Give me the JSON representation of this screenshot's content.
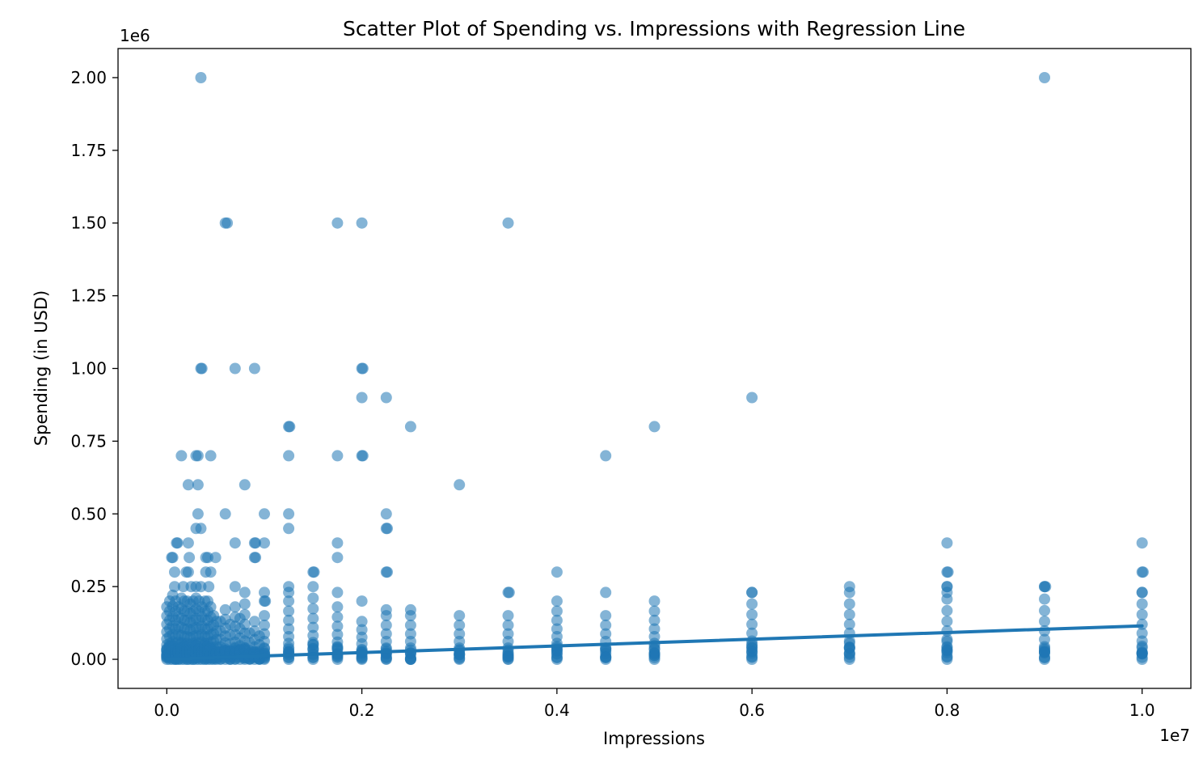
{
  "chart_data": {
    "type": "scatter",
    "title": "Scatter Plot of Spending vs. Impressions with Regression Line",
    "xlabel": "Impressions",
    "ylabel": "Spending (in USD)",
    "x_offset_label": "1e7",
    "y_offset_label": "1e6",
    "xlim": [
      -500000,
      10500000
    ],
    "ylim": [
      -100000,
      2100000
    ],
    "x_scale": 10000000,
    "y_scale": 1000000,
    "xticks": [
      0,
      2000000,
      4000000,
      6000000,
      8000000,
      10000000
    ],
    "xtick_labels": [
      "0.0",
      "0.2",
      "0.4",
      "0.6",
      "0.8",
      "1.0"
    ],
    "yticks": [
      0,
      250000,
      500000,
      750000,
      1000000,
      1250000,
      1500000,
      1750000,
      2000000
    ],
    "ytick_labels": [
      "0.00",
      "0.25",
      "0.50",
      "0.75",
      "1.00",
      "1.25",
      "1.50",
      "1.75",
      "2.00"
    ],
    "grid": false,
    "point_color": "#1f77b4",
    "point_alpha": 0.55,
    "line_color": "#1f77b4",
    "regression_line": {
      "x": [
        0,
        10000000
      ],
      "y": [
        0,
        115000
      ]
    },
    "outliers": [
      [
        350000,
        2000000
      ],
      [
        9000000,
        2000000
      ],
      [
        600000,
        1500000
      ],
      [
        620000,
        1500000
      ],
      [
        1750000,
        1500000
      ],
      [
        2000000,
        1500000
      ],
      [
        3500000,
        1500000
      ],
      [
        350000,
        1000000
      ],
      [
        360000,
        1000000
      ],
      [
        700000,
        1000000
      ],
      [
        900000,
        1000000
      ],
      [
        2000000,
        1000000
      ],
      [
        2010000,
        1000000
      ],
      [
        2000000,
        900000
      ],
      [
        2250000,
        900000
      ],
      [
        6000000,
        900000
      ],
      [
        1250000,
        800000
      ],
      [
        1260000,
        800000
      ],
      [
        2500000,
        800000
      ],
      [
        5000000,
        800000
      ],
      [
        150000,
        700000
      ],
      [
        300000,
        700000
      ],
      [
        320000,
        700000
      ],
      [
        450000,
        700000
      ],
      [
        1250000,
        700000
      ],
      [
        1750000,
        700000
      ],
      [
        2000000,
        700000
      ],
      [
        2010000,
        700000
      ],
      [
        4500000,
        700000
      ],
      [
        220000,
        600000
      ],
      [
        320000,
        600000
      ],
      [
        800000,
        600000
      ],
      [
        3000000,
        600000
      ],
      [
        320000,
        500000
      ],
      [
        600000,
        500000
      ],
      [
        1000000,
        500000
      ],
      [
        1250000,
        500000
      ],
      [
        2250000,
        500000
      ],
      [
        300000,
        450000
      ],
      [
        350000,
        450000
      ],
      [
        1250000,
        450000
      ],
      [
        2250000,
        450000
      ],
      [
        2260000,
        450000
      ],
      [
        100000,
        400000
      ],
      [
        110000,
        400000
      ],
      [
        220000,
        400000
      ],
      [
        700000,
        400000
      ],
      [
        900000,
        400000
      ],
      [
        910000,
        400000
      ],
      [
        1000000,
        400000
      ],
      [
        1750000,
        400000
      ],
      [
        8000000,
        400000
      ],
      [
        10000000,
        400000
      ],
      [
        50000,
        350000
      ],
      [
        60000,
        350000
      ],
      [
        230000,
        350000
      ],
      [
        400000,
        350000
      ],
      [
        420000,
        350000
      ],
      [
        500000,
        350000
      ],
      [
        900000,
        350000
      ],
      [
        910000,
        350000
      ],
      [
        1750000,
        350000
      ],
      [
        80000,
        300000
      ],
      [
        200000,
        300000
      ],
      [
        220000,
        300000
      ],
      [
        400000,
        300000
      ],
      [
        450000,
        300000
      ],
      [
        1500000,
        300000
      ],
      [
        1510000,
        300000
      ],
      [
        2250000,
        300000
      ],
      [
        2260000,
        300000
      ],
      [
        4000000,
        300000
      ],
      [
        8000000,
        300000
      ],
      [
        8010000,
        300000
      ],
      [
        10000000,
        300000
      ],
      [
        10010000,
        300000
      ],
      [
        80000,
        250000
      ],
      [
        170000,
        250000
      ],
      [
        250000,
        250000
      ],
      [
        300000,
        250000
      ],
      [
        350000,
        250000
      ],
      [
        430000,
        250000
      ],
      [
        700000,
        250000
      ],
      [
        1250000,
        250000
      ],
      [
        1500000,
        250000
      ],
      [
        7000000,
        250000
      ],
      [
        8000000,
        250000
      ],
      [
        9000000,
        250000
      ],
      [
        9010000,
        250000
      ],
      [
        1000000,
        230000
      ],
      [
        1250000,
        230000
      ],
      [
        1750000,
        230000
      ],
      [
        3500000,
        230000
      ],
      [
        3510000,
        230000
      ],
      [
        4500000,
        230000
      ],
      [
        6000000,
        230000
      ],
      [
        8000000,
        230000
      ],
      [
        10000000,
        230000
      ],
      [
        1000000,
        200000
      ],
      [
        1010000,
        200000
      ],
      [
        2000000,
        200000
      ],
      [
        2250000,
        170000
      ],
      [
        2500000,
        170000
      ]
    ],
    "clusters": [
      {
        "x": 0,
        "ymax": 180000,
        "count": 10
      },
      {
        "x": 30000,
        "ymax": 200000,
        "count": 10
      },
      {
        "x": 60000,
        "ymax": 220000,
        "count": 10
      },
      {
        "x": 90000,
        "ymax": 200000,
        "count": 10
      },
      {
        "x": 120000,
        "ymax": 180000,
        "count": 9
      },
      {
        "x": 150000,
        "ymax": 210000,
        "count": 10
      },
      {
        "x": 180000,
        "ymax": 200000,
        "count": 10
      },
      {
        "x": 210000,
        "ymax": 200000,
        "count": 10
      },
      {
        "x": 240000,
        "ymax": 190000,
        "count": 10
      },
      {
        "x": 270000,
        "ymax": 200000,
        "count": 10
      },
      {
        "x": 300000,
        "ymax": 210000,
        "count": 10
      },
      {
        "x": 330000,
        "ymax": 200000,
        "count": 10
      },
      {
        "x": 360000,
        "ymax": 180000,
        "count": 9
      },
      {
        "x": 390000,
        "ymax": 200000,
        "count": 10
      },
      {
        "x": 420000,
        "ymax": 200000,
        "count": 10
      },
      {
        "x": 450000,
        "ymax": 180000,
        "count": 9
      },
      {
        "x": 480000,
        "ymax": 150000,
        "count": 8
      },
      {
        "x": 510000,
        "ymax": 130000,
        "count": 7
      },
      {
        "x": 550000,
        "ymax": 130000,
        "count": 7
      },
      {
        "x": 600000,
        "ymax": 170000,
        "count": 9
      },
      {
        "x": 650000,
        "ymax": 120000,
        "count": 6
      },
      {
        "x": 700000,
        "ymax": 180000,
        "count": 9
      },
      {
        "x": 750000,
        "ymax": 140000,
        "count": 7
      },
      {
        "x": 800000,
        "ymax": 230000,
        "count": 10
      },
      {
        "x": 850000,
        "ymax": 90000,
        "count": 5
      },
      {
        "x": 900000,
        "ymax": 130000,
        "count": 7
      },
      {
        "x": 950000,
        "ymax": 80000,
        "count": 5
      },
      {
        "x": 1000000,
        "ymax": 150000,
        "count": 8
      },
      {
        "x": 1250000,
        "ymax": 200000,
        "count": 10
      },
      {
        "x": 1500000,
        "ymax": 210000,
        "count": 10
      },
      {
        "x": 1750000,
        "ymax": 180000,
        "count": 9
      },
      {
        "x": 2000000,
        "ymax": 130000,
        "count": 8
      },
      {
        "x": 2250000,
        "ymax": 150000,
        "count": 8
      },
      {
        "x": 2500000,
        "ymax": 150000,
        "count": 8
      },
      {
        "x": 3000000,
        "ymax": 150000,
        "count": 8
      },
      {
        "x": 3500000,
        "ymax": 150000,
        "count": 8
      },
      {
        "x": 4000000,
        "ymax": 200000,
        "count": 10
      },
      {
        "x": 4500000,
        "ymax": 150000,
        "count": 8
      },
      {
        "x": 5000000,
        "ymax": 200000,
        "count": 10
      },
      {
        "x": 6000000,
        "ymax": 230000,
        "count": 10
      },
      {
        "x": 7000000,
        "ymax": 230000,
        "count": 10
      },
      {
        "x": 8000000,
        "ymax": 250000,
        "count": 10
      },
      {
        "x": 9000000,
        "ymax": 250000,
        "count": 10
      },
      {
        "x": 10000000,
        "ymax": 230000,
        "count": 10
      }
    ]
  }
}
